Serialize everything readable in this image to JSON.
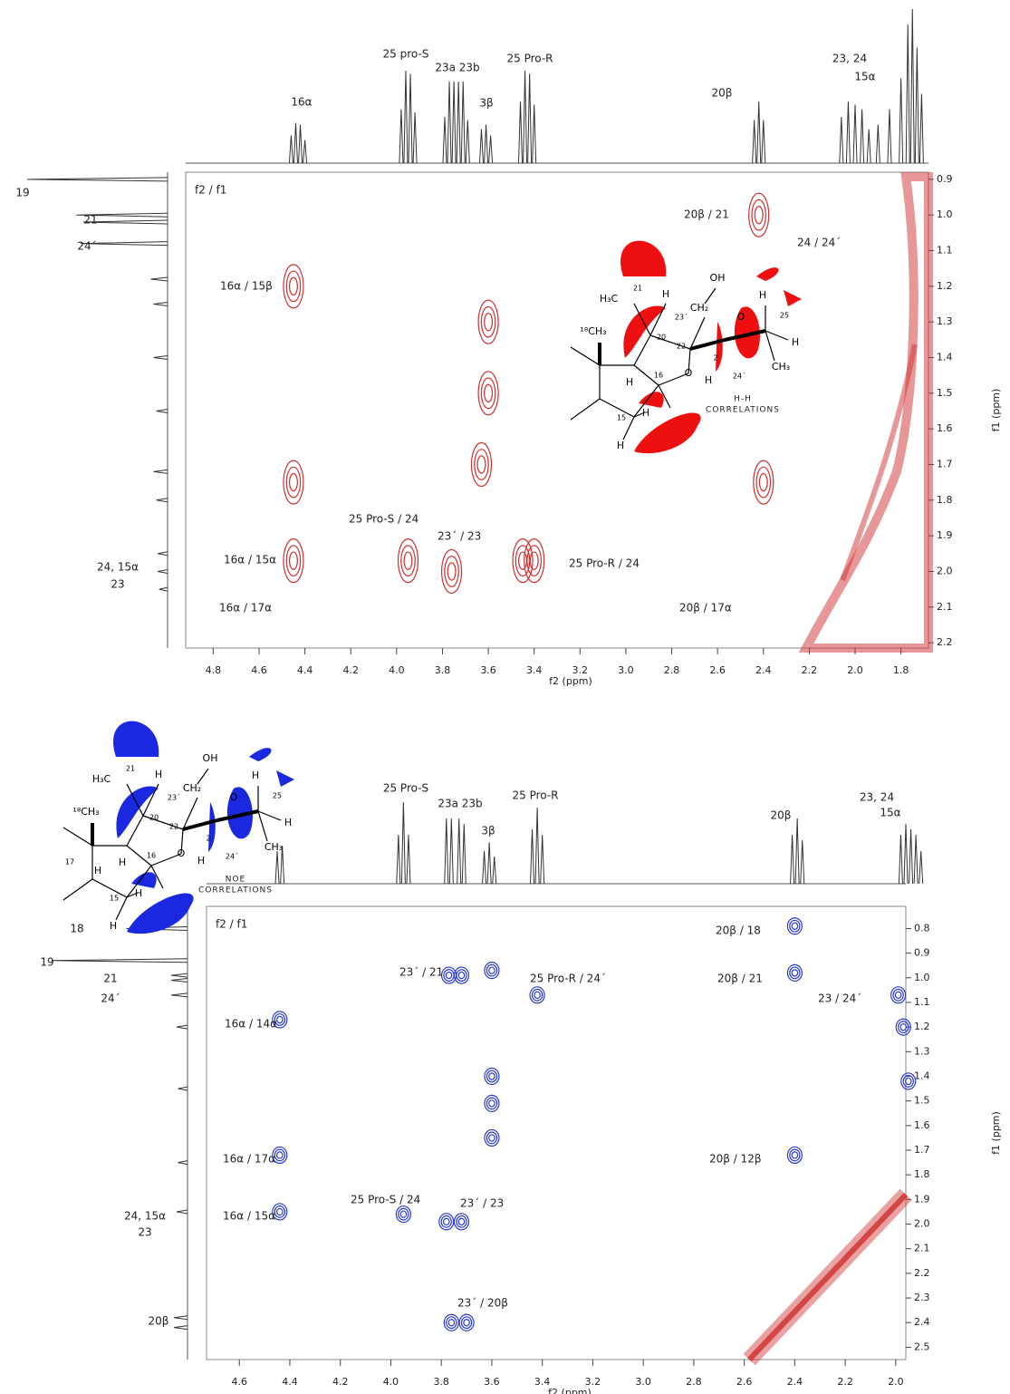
{
  "panels": [
    {
      "corner": "f2 / f1",
      "xlabel": "f2 (ppm)",
      "ylabel": "f1 (ppm)",
      "color": "#d03030",
      "xlim": [
        4.92,
        1.68
      ],
      "ylim": [
        0.88,
        2.215
      ],
      "xticks": [
        4.8,
        4.6,
        4.4,
        4.2,
        {
          "value": 4,
          "label": "4.0"
        },
        3.8,
        3.6,
        3.4,
        3.2,
        {
          "value": 3,
          "label": "3.0"
        },
        2.8,
        2.6,
        2.4,
        2.2,
        {
          "value": 2,
          "label": "2.0"
        },
        1.8
      ],
      "yticks": [
        0.9,
        {
          "value": 1,
          "label": "1.0"
        },
        1.1,
        1.2,
        1.3,
        1.4,
        1.5,
        1.6,
        1.7,
        1.8,
        1.9,
        {
          "value": 2,
          "label": "2.0"
        },
        2.1,
        2.2
      ],
      "peaks": {
        "x": [
          4.45,
          4.45,
          4.45,
          3.95,
          3.76,
          3.6,
          3.6,
          3.63,
          3.45,
          3.4,
          2.42,
          2.4
        ],
        "y": [
          1.2,
          1.75,
          1.97,
          1.97,
          2.0,
          1.3,
          1.5,
          1.7,
          1.97,
          1.97,
          1.0,
          1.75
        ]
      },
      "top_trace": {
        "x": [
          4.46,
          4.44,
          4.42,
          4.4,
          3.98,
          3.96,
          3.94,
          3.92,
          3.79,
          3.77,
          3.75,
          3.73,
          3.71,
          3.69,
          3.63,
          3.61,
          3.59,
          3.46,
          3.44,
          3.42,
          3.4,
          2.44,
          2.42,
          2.4,
          2.06,
          2.03,
          2.0,
          1.97,
          1.94,
          1.9,
          1.85,
          1.8,
          1.77,
          1.75,
          1.73,
          1.71
        ],
        "h": [
          0.18,
          0.26,
          0.25,
          0.15,
          0.35,
          0.6,
          0.58,
          0.33,
          0.3,
          0.53,
          0.53,
          0.53,
          0.53,
          0.28,
          0.22,
          0.25,
          0.18,
          0.4,
          0.6,
          0.58,
          0.38,
          0.28,
          0.4,
          0.28,
          0.3,
          0.4,
          0.38,
          0.35,
          0.22,
          0.25,
          0.35,
          0.55,
          0.9,
          1.0,
          0.75,
          0.45
        ]
      },
      "left_trace": {
        "y": [
          0.9,
          1.0,
          1.02,
          1.08,
          1.18,
          1.25,
          1.4,
          1.55,
          1.72,
          1.8,
          1.95,
          2.0,
          2.05
        ],
        "h": [
          1.0,
          0.65,
          0.6,
          0.62,
          0.12,
          0.1,
          0.1,
          0.08,
          0.1,
          0.08,
          0.07,
          0.07,
          0.06
        ]
      },
      "top_labels": [
        "16α",
        "25 pro-S",
        "23a 23b",
        "3β",
        "25 Pro-R",
        "20β",
        "23, 24",
        "15α"
      ],
      "left_labels": [
        "19",
        "21",
        "24´",
        "24, 15α",
        "23"
      ],
      "peak_labels": [
        "20β / 21",
        "24 / 24´",
        "16α / 15β",
        "16α / 17α",
        "20β / 17α",
        "25 Pro-S / 24",
        "23´ / 23",
        "16α / 15α",
        "25 Pro-R / 24"
      ],
      "molecule": {
        "labels": [
          "H₃C",
          "21",
          "H",
          "¹⁸CH₃",
          "OH",
          "CH₂",
          "23´",
          "20",
          "22",
          "16",
          "H",
          "O",
          "H",
          "2",
          "O",
          "H",
          "25",
          "H",
          "CH₃",
          "24´",
          "15",
          "H",
          "H"
        ],
        "caption": [
          "H-H",
          "CORRELATIONS"
        ]
      }
    },
    {
      "corner": "f2 / f1",
      "xlabel": "f2 (ppm)",
      "ylabel": "f1 (ppm)",
      "color": "#2a3ad8",
      "xlim": [
        4.73,
        1.96
      ],
      "ylim": [
        0.71,
        2.55
      ],
      "xticks": [
        4.6,
        4.4,
        4.2,
        {
          "value": 4,
          "label": "4.0"
        },
        3.8,
        3.6,
        3.4,
        3.2,
        {
          "value": 3,
          "label": "3.0"
        },
        2.8,
        2.6,
        2.4,
        2.2,
        {
          "value": 2,
          "label": "2.0"
        }
      ],
      "yticks": [
        0.8,
        0.9,
        {
          "value": 1,
          "label": "1.0"
        },
        1.1,
        1.2,
        1.3,
        1.4,
        1.5,
        1.6,
        1.7,
        1.8,
        1.9,
        {
          "value": 2,
          "label": "2.0"
        },
        2.1,
        2.2,
        2.3,
        2.4,
        2.5
      ],
      "peaks": {
        "x": [
          2.4,
          2.4,
          3.77,
          3.72,
          3.6,
          3.42,
          4.44,
          3.6,
          3.6,
          3.6,
          4.44,
          2.4,
          4.44,
          3.95,
          3.78,
          3.72,
          3.76,
          3.7,
          1.95,
          1.97,
          1.99
        ],
        "y": [
          0.79,
          0.98,
          0.99,
          0.99,
          0.97,
          1.07,
          1.17,
          1.4,
          1.51,
          1.65,
          1.72,
          1.72,
          1.95,
          1.96,
          1.99,
          1.99,
          2.4,
          2.4,
          1.42,
          1.2,
          1.07
        ]
      },
      "top_trace": {
        "x": [
          4.45,
          4.43,
          3.97,
          3.95,
          3.93,
          3.78,
          3.76,
          3.73,
          3.71,
          3.63,
          3.61,
          3.59,
          3.44,
          3.42,
          3.4,
          2.41,
          2.39,
          2.37,
          1.98,
          1.96,
          1.94,
          1.92,
          1.9
        ],
        "h": [
          0.3,
          0.35,
          0.45,
          0.75,
          0.45,
          0.6,
          0.6,
          0.6,
          0.55,
          0.3,
          0.38,
          0.25,
          0.5,
          0.7,
          0.45,
          0.45,
          0.6,
          0.4,
          0.45,
          0.55,
          0.5,
          0.45,
          0.3
        ]
      },
      "left_trace": {
        "y": [
          0.8,
          0.93,
          0.99,
          1.01,
          1.07,
          1.2,
          1.45,
          1.75,
          1.95,
          2.38,
          2.42
        ],
        "h": [
          0.45,
          1.0,
          0.12,
          0.12,
          0.12,
          0.08,
          0.07,
          0.07,
          0.08,
          0.1,
          0.1
        ]
      },
      "top_labels": [
        "25 Pro-S",
        "23a 23b",
        "3β",
        "25 Pro-R",
        "20β",
        "23, 24",
        "15α"
      ],
      "left_labels": [
        "18",
        "19",
        "21",
        "24´",
        "24, 15α",
        "23",
        "20β"
      ],
      "peak_labels": [
        "20β / 18",
        "20β / 21",
        "23´ / 21",
        "25 Pro-R / 24´",
        "23 / 24´",
        "16α / 14α",
        "16α / 17α",
        "20β / 12β",
        "25 Pro-S / 24",
        "23´ / 23",
        "16α / 15α",
        "23´ / 20β"
      ],
      "molecule": {
        "labels": [
          "H₃C",
          "21",
          "H",
          "¹⁸CH₃",
          "OH",
          "CH₂",
          "23´",
          "20",
          "22",
          "16",
          "H",
          "O",
          "H",
          "2",
          "O",
          "H",
          "25",
          "H",
          "CH₃",
          "24´",
          "15",
          "H",
          "H",
          "17",
          "H"
        ],
        "caption": [
          "NOE",
          "CORRELATIONS"
        ]
      }
    }
  ]
}
